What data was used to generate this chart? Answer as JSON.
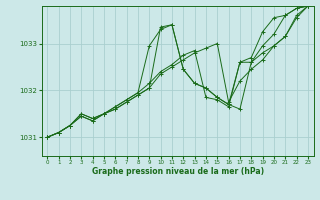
{
  "xlabel": "Graphe pression niveau de la mer (hPa)",
  "bg_color": "#cce8e8",
  "grid_color": "#aacfcf",
  "line_color": "#1a6b1a",
  "xlim": [
    -0.5,
    23.5
  ],
  "ylim": [
    1030.6,
    1033.8
  ],
  "yticks": [
    1031,
    1032,
    1033
  ],
  "xticks": [
    0,
    1,
    2,
    3,
    4,
    5,
    6,
    7,
    8,
    9,
    10,
    11,
    12,
    13,
    14,
    15,
    16,
    17,
    18,
    19,
    20,
    21,
    22,
    23
  ],
  "series": [
    {
      "x": [
        0,
        1,
        2,
        3,
        4,
        5,
        6,
        7,
        8,
        9,
        10,
        11,
        12,
        13,
        14,
        15,
        16,
        17,
        18,
        19,
        20,
        21,
        22,
        23
      ],
      "y": [
        1031.0,
        1031.1,
        1031.25,
        1031.45,
        1031.35,
        1031.5,
        1031.6,
        1031.75,
        1031.9,
        1032.05,
        1033.35,
        1033.4,
        1032.45,
        1032.15,
        1032.05,
        1031.85,
        1031.7,
        1031.6,
        1032.6,
        1032.95,
        1033.2,
        1033.6,
        1033.75,
        1033.8
      ]
    },
    {
      "x": [
        0,
        1,
        2,
        3,
        4,
        5,
        6,
        7,
        8,
        9,
        10,
        11,
        12,
        13,
        14,
        15,
        16,
        17,
        18,
        19,
        20,
        21,
        22,
        23
      ],
      "y": [
        1031.0,
        1031.1,
        1031.25,
        1031.45,
        1031.35,
        1031.5,
        1031.6,
        1031.75,
        1031.9,
        1032.05,
        1032.35,
        1032.5,
        1032.65,
        1032.8,
        1032.9,
        1033.0,
        1031.75,
        1032.2,
        1032.45,
        1032.65,
        1032.95,
        1033.15,
        1033.6,
        1033.8
      ]
    },
    {
      "x": [
        0,
        1,
        2,
        3,
        4,
        5,
        6,
        7,
        8,
        9,
        10,
        11,
        12,
        13,
        14,
        15,
        16,
        17,
        18,
        19,
        20,
        21,
        22,
        23
      ],
      "y": [
        1031.0,
        1031.1,
        1031.25,
        1031.5,
        1031.4,
        1031.5,
        1031.65,
        1031.8,
        1031.95,
        1032.15,
        1032.4,
        1032.55,
        1032.75,
        1032.85,
        1031.85,
        1031.8,
        1031.65,
        1032.6,
        1032.6,
        1032.8,
        1032.95,
        1033.15,
        1033.55,
        1033.8
      ]
    },
    {
      "x": [
        0,
        1,
        2,
        3,
        4,
        5,
        6,
        7,
        8,
        9,
        10,
        11,
        12,
        13,
        14,
        15,
        16,
        17,
        18,
        19,
        20,
        21,
        22,
        23
      ],
      "y": [
        1031.0,
        1031.1,
        1031.25,
        1031.5,
        1031.4,
        1031.5,
        1031.65,
        1031.8,
        1031.95,
        1032.95,
        1033.3,
        1033.4,
        1032.45,
        1032.15,
        1032.05,
        1031.85,
        1031.7,
        1032.6,
        1032.7,
        1033.25,
        1033.55,
        1033.6,
        1033.75,
        1033.8
      ]
    }
  ]
}
